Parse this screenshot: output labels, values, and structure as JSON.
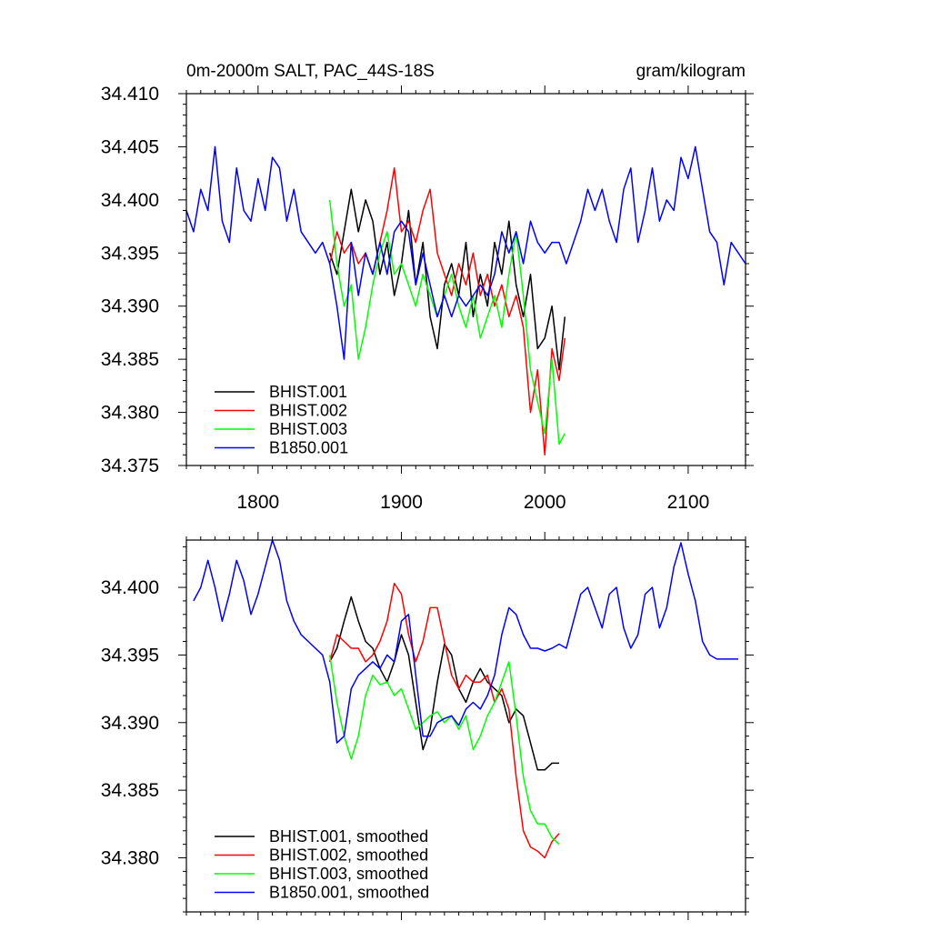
{
  "chart_data": [
    {
      "type": "line",
      "title_left": "0m-2000m SALT, PAC_44S-18S",
      "title_right": "gram/kilogram",
      "xlim": [
        1750,
        2140
      ],
      "ylim": [
        34.375,
        34.41
      ],
      "x_ticks": [
        1800,
        1900,
        2000,
        2100
      ],
      "y_ticks": [
        34.375,
        34.38,
        34.385,
        34.39,
        34.395,
        34.4,
        34.405,
        34.41
      ],
      "x_tick_labels": [
        "1800",
        "1900",
        "2000",
        "2100"
      ],
      "y_tick_labels": [
        "34.375",
        "34.380",
        "34.385",
        "34.390",
        "34.395",
        "34.400",
        "34.405",
        "34.410"
      ],
      "legend_position": "bottom-left",
      "series": [
        {
          "name": "BHIST.001",
          "color": "#000000",
          "x": [
            1850,
            1855,
            1860,
            1865,
            1870,
            1875,
            1880,
            1885,
            1890,
            1895,
            1900,
            1905,
            1910,
            1915,
            1920,
            1925,
            1930,
            1935,
            1940,
            1945,
            1950,
            1955,
            1960,
            1965,
            1970,
            1975,
            1980,
            1985,
            1990,
            1995,
            2000,
            2005,
            2010,
            2014
          ],
          "y": [
            34.395,
            34.393,
            34.397,
            34.401,
            34.397,
            34.4,
            34.398,
            34.393,
            34.396,
            34.391,
            34.394,
            34.399,
            34.392,
            34.396,
            34.389,
            34.386,
            34.392,
            34.394,
            34.391,
            34.396,
            34.389,
            34.393,
            34.39,
            34.396,
            34.393,
            34.398,
            34.392,
            34.389,
            34.393,
            34.386,
            34.387,
            34.39,
            34.384,
            34.389
          ]
        },
        {
          "name": "BHIST.002",
          "color": "#ff0000",
          "x": [
            1850,
            1855,
            1860,
            1865,
            1870,
            1875,
            1880,
            1885,
            1890,
            1895,
            1900,
            1905,
            1910,
            1915,
            1920,
            1925,
            1930,
            1935,
            1940,
            1945,
            1950,
            1955,
            1960,
            1965,
            1970,
            1975,
            1980,
            1985,
            1990,
            1995,
            2000,
            2005,
            2010,
            2014
          ],
          "y": [
            34.394,
            34.397,
            34.395,
            34.396,
            34.394,
            34.395,
            34.393,
            34.396,
            34.399,
            34.403,
            34.397,
            34.398,
            34.396,
            34.399,
            34.401,
            34.395,
            34.393,
            34.391,
            34.394,
            34.392,
            34.395,
            34.391,
            34.393,
            34.39,
            34.392,
            34.389,
            34.391,
            34.388,
            34.38,
            34.384,
            34.376,
            34.386,
            34.383,
            34.387
          ]
        },
        {
          "name": "BHIST.003",
          "color": "#00ff00",
          "x": [
            1850,
            1855,
            1860,
            1865,
            1870,
            1875,
            1880,
            1885,
            1890,
            1895,
            1900,
            1905,
            1910,
            1915,
            1920,
            1925,
            1930,
            1935,
            1940,
            1945,
            1950,
            1955,
            1960,
            1965,
            1970,
            1975,
            1980,
            1985,
            1990,
            1995,
            2000,
            2005,
            2010,
            2014
          ],
          "y": [
            34.4,
            34.394,
            34.39,
            34.392,
            34.385,
            34.388,
            34.392,
            34.395,
            34.397,
            34.393,
            34.394,
            34.392,
            34.39,
            34.393,
            34.391,
            34.389,
            34.391,
            34.393,
            34.39,
            34.388,
            34.391,
            34.387,
            34.389,
            34.391,
            34.388,
            34.393,
            34.397,
            34.391,
            34.384,
            34.381,
            34.378,
            34.385,
            34.377,
            34.378
          ]
        },
        {
          "name": "B1850.001",
          "color": "#0000ff",
          "x": [
            1750,
            1755,
            1760,
            1765,
            1770,
            1775,
            1780,
            1785,
            1790,
            1795,
            1800,
            1805,
            1810,
            1815,
            1820,
            1825,
            1830,
            1835,
            1840,
            1845,
            1850,
            1855,
            1860,
            1865,
            1870,
            1875,
            1880,
            1885,
            1890,
            1895,
            1900,
            1905,
            1910,
            1915,
            1920,
            1925,
            1930,
            1935,
            1940,
            1945,
            1950,
            1955,
            1960,
            1965,
            1970,
            1975,
            1980,
            1985,
            1990,
            1995,
            2000,
            2005,
            2010,
            2015,
            2020,
            2025,
            2030,
            2035,
            2040,
            2045,
            2050,
            2055,
            2060,
            2065,
            2070,
            2075,
            2080,
            2085,
            2090,
            2095,
            2100,
            2105,
            2110,
            2115,
            2120,
            2125,
            2130,
            2135,
            2140
          ],
          "y": [
            34.399,
            34.397,
            34.401,
            34.399,
            34.405,
            34.398,
            34.396,
            34.403,
            34.399,
            34.398,
            34.402,
            34.399,
            34.404,
            34.403,
            34.398,
            34.401,
            34.397,
            34.396,
            34.395,
            34.396,
            34.394,
            34.39,
            34.385,
            34.396,
            34.391,
            34.395,
            34.393,
            34.396,
            34.393,
            34.397,
            34.398,
            34.397,
            34.392,
            34.395,
            34.392,
            34.389,
            34.391,
            34.389,
            34.391,
            34.39,
            34.391,
            34.392,
            34.391,
            34.393,
            34.397,
            34.395,
            34.397,
            34.394,
            34.398,
            34.396,
            34.395,
            34.396,
            34.396,
            34.394,
            34.396,
            34.398,
            34.401,
            34.399,
            34.401,
            34.398,
            34.396,
            34.401,
            34.403,
            34.396,
            34.399,
            34.403,
            34.398,
            34.4,
            34.399,
            34.404,
            34.402,
            34.405,
            34.401,
            34.397,
            34.396,
            34.392,
            34.396,
            34.395,
            34.394
          ]
        }
      ]
    },
    {
      "type": "line",
      "xlim": [
        1750,
        2140
      ],
      "ylim": [
        34.376,
        34.4035
      ],
      "x_ticks": [
        1800,
        1900,
        2000,
        2100
      ],
      "y_ticks": [
        34.38,
        34.385,
        34.39,
        34.395,
        34.4
      ],
      "y_tick_labels": [
        "34.380",
        "34.385",
        "34.390",
        "34.395",
        "34.400"
      ],
      "legend_position": "bottom-left",
      "series": [
        {
          "name": "BHIST.001, smoothed",
          "color": "#000000",
          "x": [
            1850,
            1855,
            1860,
            1865,
            1870,
            1875,
            1880,
            1885,
            1890,
            1895,
            1900,
            1905,
            1910,
            1915,
            1920,
            1925,
            1930,
            1935,
            1940,
            1945,
            1950,
            1955,
            1960,
            1965,
            1970,
            1975,
            1980,
            1985,
            1990,
            1995,
            2000,
            2005,
            2010
          ],
          "y": [
            34.3945,
            34.3955,
            34.3975,
            34.3993,
            34.3975,
            34.396,
            34.3955,
            34.394,
            34.393,
            34.3945,
            34.3965,
            34.395,
            34.3915,
            34.388,
            34.3895,
            34.393,
            34.3958,
            34.395,
            34.3925,
            34.3915,
            34.393,
            34.394,
            34.393,
            34.3925,
            34.392,
            34.39,
            34.391,
            34.3905,
            34.3885,
            34.3865,
            34.3865,
            34.387,
            34.387
          ]
        },
        {
          "name": "BHIST.002, smoothed",
          "color": "#ff0000",
          "x": [
            1850,
            1855,
            1860,
            1865,
            1870,
            1875,
            1880,
            1885,
            1890,
            1895,
            1900,
            1905,
            1910,
            1915,
            1920,
            1925,
            1930,
            1935,
            1940,
            1945,
            1950,
            1955,
            1960,
            1965,
            1970,
            1975,
            1980,
            1985,
            1990,
            1995,
            2000,
            2005,
            2010
          ],
          "y": [
            34.3945,
            34.3965,
            34.396,
            34.3955,
            34.3955,
            34.3945,
            34.395,
            34.396,
            34.3975,
            34.4003,
            34.3995,
            34.3965,
            34.3945,
            34.396,
            34.3985,
            34.3985,
            34.396,
            34.3935,
            34.3925,
            34.3935,
            34.393,
            34.393,
            34.3935,
            34.3915,
            34.3925,
            34.391,
            34.386,
            34.382,
            34.3808,
            34.3805,
            34.38,
            34.3812,
            34.3818
          ]
        },
        {
          "name": "BHIST.003, smoothed",
          "color": "#00ff00",
          "x": [
            1850,
            1855,
            1860,
            1865,
            1870,
            1875,
            1880,
            1885,
            1890,
            1895,
            1900,
            1905,
            1910,
            1915,
            1920,
            1925,
            1930,
            1935,
            1940,
            1945,
            1950,
            1955,
            1960,
            1965,
            1970,
            1975,
            1980,
            1985,
            1990,
            1995,
            2000,
            2005,
            2010
          ],
          "y": [
            34.395,
            34.3915,
            34.389,
            34.3873,
            34.389,
            34.392,
            34.3935,
            34.3928,
            34.393,
            34.392,
            34.3925,
            34.391,
            34.3895,
            34.39,
            34.3905,
            34.3908,
            34.39,
            34.3905,
            34.3895,
            34.3905,
            34.388,
            34.389,
            34.3905,
            34.3915,
            34.393,
            34.3945,
            34.3905,
            34.386,
            34.3835,
            34.3825,
            34.3825,
            34.3815,
            34.381
          ]
        },
        {
          "name": "B1850.001, smoothed",
          "color": "#0000ff",
          "x": [
            1755,
            1760,
            1765,
            1770,
            1775,
            1780,
            1785,
            1790,
            1795,
            1800,
            1805,
            1810,
            1815,
            1820,
            1825,
            1830,
            1835,
            1840,
            1845,
            1850,
            1855,
            1860,
            1865,
            1870,
            1875,
            1880,
            1885,
            1890,
            1895,
            1900,
            1905,
            1910,
            1915,
            1920,
            1925,
            1930,
            1935,
            1940,
            1945,
            1950,
            1955,
            1960,
            1965,
            1970,
            1975,
            1980,
            1985,
            1990,
            1995,
            2000,
            2005,
            2010,
            2015,
            2020,
            2025,
            2030,
            2035,
            2040,
            2045,
            2050,
            2055,
            2060,
            2065,
            2070,
            2075,
            2080,
            2085,
            2090,
            2095,
            2100,
            2105,
            2110,
            2115,
            2120,
            2125,
            2130,
            2135
          ],
          "y": [
            34.399,
            34.4,
            34.402,
            34.4,
            34.3975,
            34.3995,
            34.402,
            34.4005,
            34.398,
            34.3995,
            34.4015,
            34.4035,
            34.402,
            34.399,
            34.3975,
            34.3965,
            34.396,
            34.3955,
            34.395,
            34.393,
            34.3885,
            34.389,
            34.3925,
            34.3935,
            34.394,
            34.3945,
            34.394,
            34.395,
            34.3945,
            34.3975,
            34.398,
            34.3935,
            34.389,
            34.389,
            34.39,
            34.3903,
            34.3905,
            34.3898,
            34.391,
            34.3915,
            34.391,
            34.392,
            34.3935,
            34.3965,
            34.3985,
            34.398,
            34.3965,
            34.3955,
            34.3955,
            34.3953,
            34.3955,
            34.3958,
            34.3955,
            34.3975,
            34.3995,
            34.4,
            34.3985,
            34.397,
            34.3995,
            34.4,
            34.397,
            34.3955,
            34.3965,
            34.3995,
            34.4,
            34.397,
            34.3985,
            34.4015,
            34.4033,
            34.401,
            34.399,
            34.396,
            34.395,
            34.3947,
            34.3947,
            34.3947,
            34.3947
          ]
        }
      ]
    }
  ]
}
